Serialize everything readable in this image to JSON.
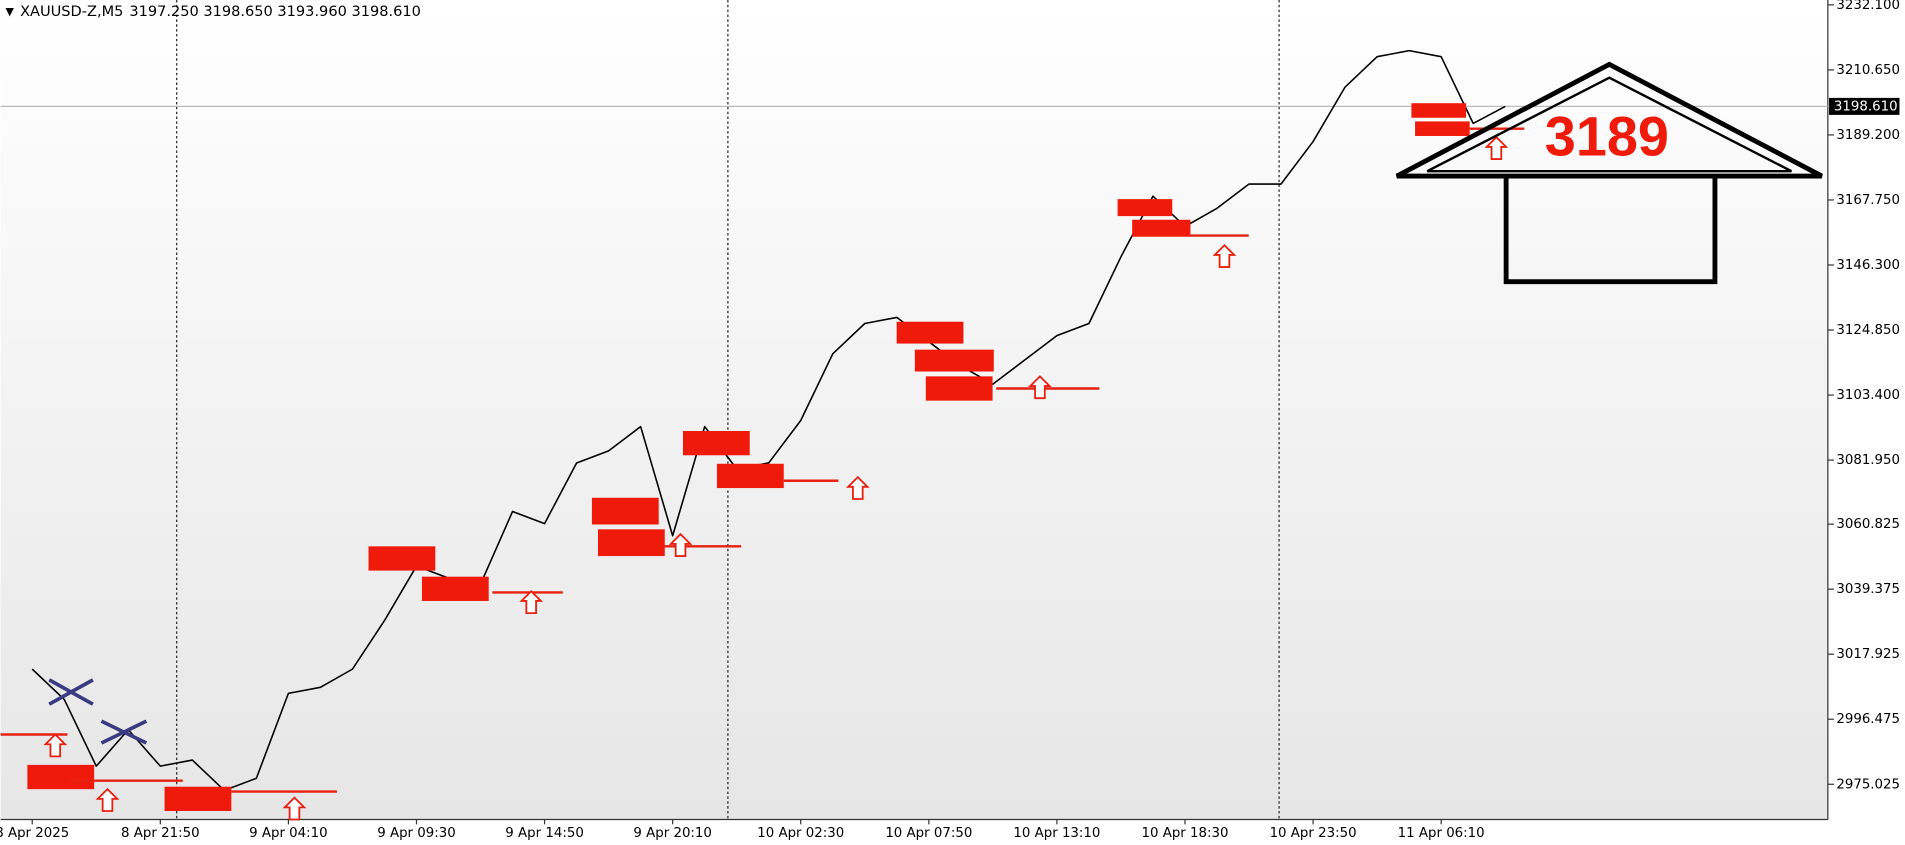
{
  "chart_data": {
    "type": "line",
    "title": "XAUUSD-Z,M5",
    "subtitle": "3197.250 3198.650 3193.960 3198.610",
    "color": "#000000",
    "categories": [
      "8 Apr 2025",
      null,
      null,
      null,
      "8 Apr 21:50",
      null,
      null,
      null,
      "9 Apr 04:10",
      null,
      null,
      null,
      "9 Apr 09:30",
      null,
      null,
      null,
      "9 Apr 14:50",
      null,
      null,
      null,
      "9 Apr 20:10",
      null,
      null,
      null,
      "10 Apr 02:30",
      null,
      null,
      null,
      "10 Apr 07:50",
      null,
      null,
      null,
      "10 Apr 13:10",
      null,
      null,
      null,
      "10 Apr 18:30",
      null,
      null,
      null,
      "10 Apr 23:50",
      null,
      null,
      null,
      "11 Apr 06:10",
      null,
      null
    ],
    "values": [
      3013,
      3003,
      2981,
      2993,
      2981,
      2983,
      2973,
      2977,
      3005,
      3007,
      3013,
      3029,
      3047,
      3043,
      3041,
      3065,
      3061,
      3081,
      3085,
      3093,
      3057,
      3093,
      3079,
      3081,
      3095,
      3117,
      3127,
      3129,
      3121,
      3113,
      3107,
      3115,
      3123,
      3127,
      3149,
      3169,
      3159,
      3165,
      3173,
      3173,
      3187,
      3205,
      3215,
      3217,
      3215,
      3193,
      3198.61
    ],
    "ylim": [
      2963.4,
      3233.7
    ],
    "yticks": [
      {
        "value": 3232.1,
        "label": "3232.100"
      },
      {
        "value": 3210.65,
        "label": "3210.650"
      },
      {
        "value": 3189.2,
        "label": "3189.200"
      },
      {
        "value": 3167.75,
        "label": "3167.750"
      },
      {
        "value": 3146.3,
        "label": "3146.300"
      },
      {
        "value": 3124.85,
        "label": "3124.850"
      },
      {
        "value": 3103.4,
        "label": "3103.400"
      },
      {
        "value": 3081.95,
        "label": "3081.950"
      },
      {
        "value": 3060.825,
        "label": "3060.825"
      },
      {
        "value": 3039.375,
        "label": "3039.375"
      },
      {
        "value": 3017.925,
        "label": "3017.925"
      },
      {
        "value": 2996.475,
        "label": "2996.475"
      },
      {
        "value": 2975.025,
        "label": "2975.025"
      }
    ],
    "last_price": {
      "value": 3198.61,
      "label": "3198.610"
    },
    "annotations": [
      {
        "text": "3189"
      }
    ]
  }
}
